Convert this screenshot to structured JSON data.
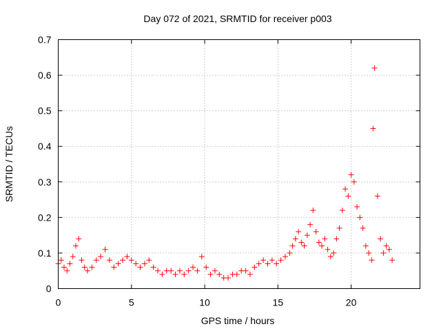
{
  "chart_data": {
    "type": "scatter",
    "title": "Day 072 of 2021, SRMTID for receiver p003",
    "xlabel": "GPS time / hours",
    "ylabel": "SRMTID / TECUs",
    "xlim": [
      0,
      24.7
    ],
    "ylim": [
      0,
      0.7
    ],
    "xticks": [
      "0",
      "5",
      "10",
      "15",
      "20"
    ],
    "yticks": [
      "0",
      "0.1",
      "0.2",
      "0.3",
      "0.4",
      "0.5",
      "0.6",
      "0.7"
    ],
    "grid": true,
    "marker": "+",
    "color": "#ff0000",
    "series": [
      {
        "name": "SRMTID",
        "points_note": "Visible envelope of the dense scatter (hour, TECUs)",
        "x": [
          0.0,
          0.2,
          0.4,
          0.6,
          0.8,
          1.0,
          1.2,
          1.4,
          1.6,
          1.8,
          2.0,
          2.3,
          2.6,
          2.9,
          3.2,
          3.5,
          3.8,
          4.1,
          4.4,
          4.7,
          5.0,
          5.3,
          5.6,
          5.9,
          6.2,
          6.5,
          6.8,
          7.1,
          7.4,
          7.7,
          8.0,
          8.3,
          8.6,
          8.9,
          9.2,
          9.5,
          9.8,
          10.1,
          10.4,
          10.7,
          11.0,
          11.3,
          11.6,
          11.9,
          12.2,
          12.5,
          12.8,
          13.1,
          13.4,
          13.7,
          14.0,
          14.3,
          14.6,
          14.9,
          15.2,
          15.5,
          15.8,
          16.0,
          16.2,
          16.4,
          16.6,
          16.8,
          17.0,
          17.2,
          17.4,
          17.6,
          17.8,
          18.0,
          18.2,
          18.4,
          18.6,
          18.8,
          19.0,
          19.2,
          19.4,
          19.6,
          19.8,
          20.0,
          20.2,
          20.4,
          20.6,
          20.8,
          21.0,
          21.2,
          21.4,
          21.5,
          21.6,
          21.8,
          22.0,
          22.2,
          22.4,
          22.6,
          22.8
        ],
        "y": [
          0.07,
          0.08,
          0.06,
          0.05,
          0.07,
          0.09,
          0.12,
          0.14,
          0.08,
          0.06,
          0.05,
          0.06,
          0.08,
          0.09,
          0.11,
          0.08,
          0.06,
          0.07,
          0.08,
          0.09,
          0.08,
          0.07,
          0.06,
          0.07,
          0.08,
          0.06,
          0.05,
          0.04,
          0.05,
          0.05,
          0.04,
          0.05,
          0.04,
          0.05,
          0.06,
          0.05,
          0.09,
          0.06,
          0.04,
          0.05,
          0.04,
          0.03,
          0.03,
          0.04,
          0.04,
          0.05,
          0.05,
          0.04,
          0.06,
          0.07,
          0.08,
          0.07,
          0.08,
          0.07,
          0.08,
          0.09,
          0.1,
          0.12,
          0.14,
          0.16,
          0.13,
          0.12,
          0.15,
          0.18,
          0.22,
          0.16,
          0.13,
          0.12,
          0.14,
          0.11,
          0.09,
          0.1,
          0.14,
          0.17,
          0.22,
          0.28,
          0.26,
          0.32,
          0.3,
          0.23,
          0.2,
          0.17,
          0.12,
          0.1,
          0.08,
          0.45,
          0.62,
          0.26,
          0.14,
          0.1,
          0.12,
          0.11,
          0.08
        ]
      }
    ]
  }
}
